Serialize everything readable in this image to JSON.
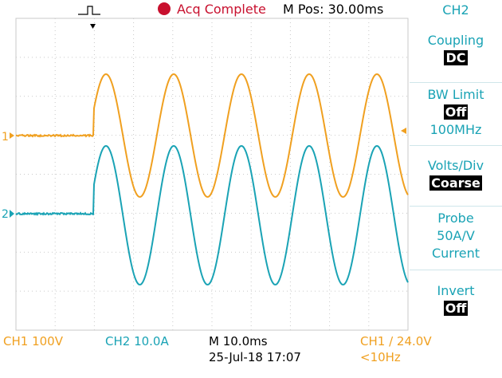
{
  "colors": {
    "ch1": "#f0a020",
    "ch2": "#1aa3b5",
    "acq_dot": "#c8102e",
    "grid": "#c9c9c9",
    "menu_text": "#1aa3b5"
  },
  "status": {
    "trigger_icon": "trigger-pulse-icon",
    "acq_state": "Acq Complete",
    "mpos": "M Pos: 30.00ms"
  },
  "menu": {
    "title": "CH2",
    "items": [
      {
        "label": "Coupling",
        "value": "DC"
      },
      {
        "label": "BW Limit",
        "value": "Off",
        "extra": "100MHz"
      },
      {
        "label": "Volts/Div",
        "value": "Coarse"
      },
      {
        "label": "Probe",
        "line2": "50A/V",
        "line3": "Current"
      },
      {
        "label": "Invert",
        "value": "Off"
      }
    ]
  },
  "markers": {
    "ch1": "1",
    "ch2": "2"
  },
  "bottom": {
    "ch1_scale": "CH1  100V",
    "ch2_scale": "CH2  10.0A",
    "timebase": "M 10.0ms",
    "datetime": "25-Jul-18 17:07",
    "trigger_source": "CH1",
    "trigger_slope": "/",
    "trigger_level": "24.0V",
    "trigger_freq": "<10Hz"
  }
}
